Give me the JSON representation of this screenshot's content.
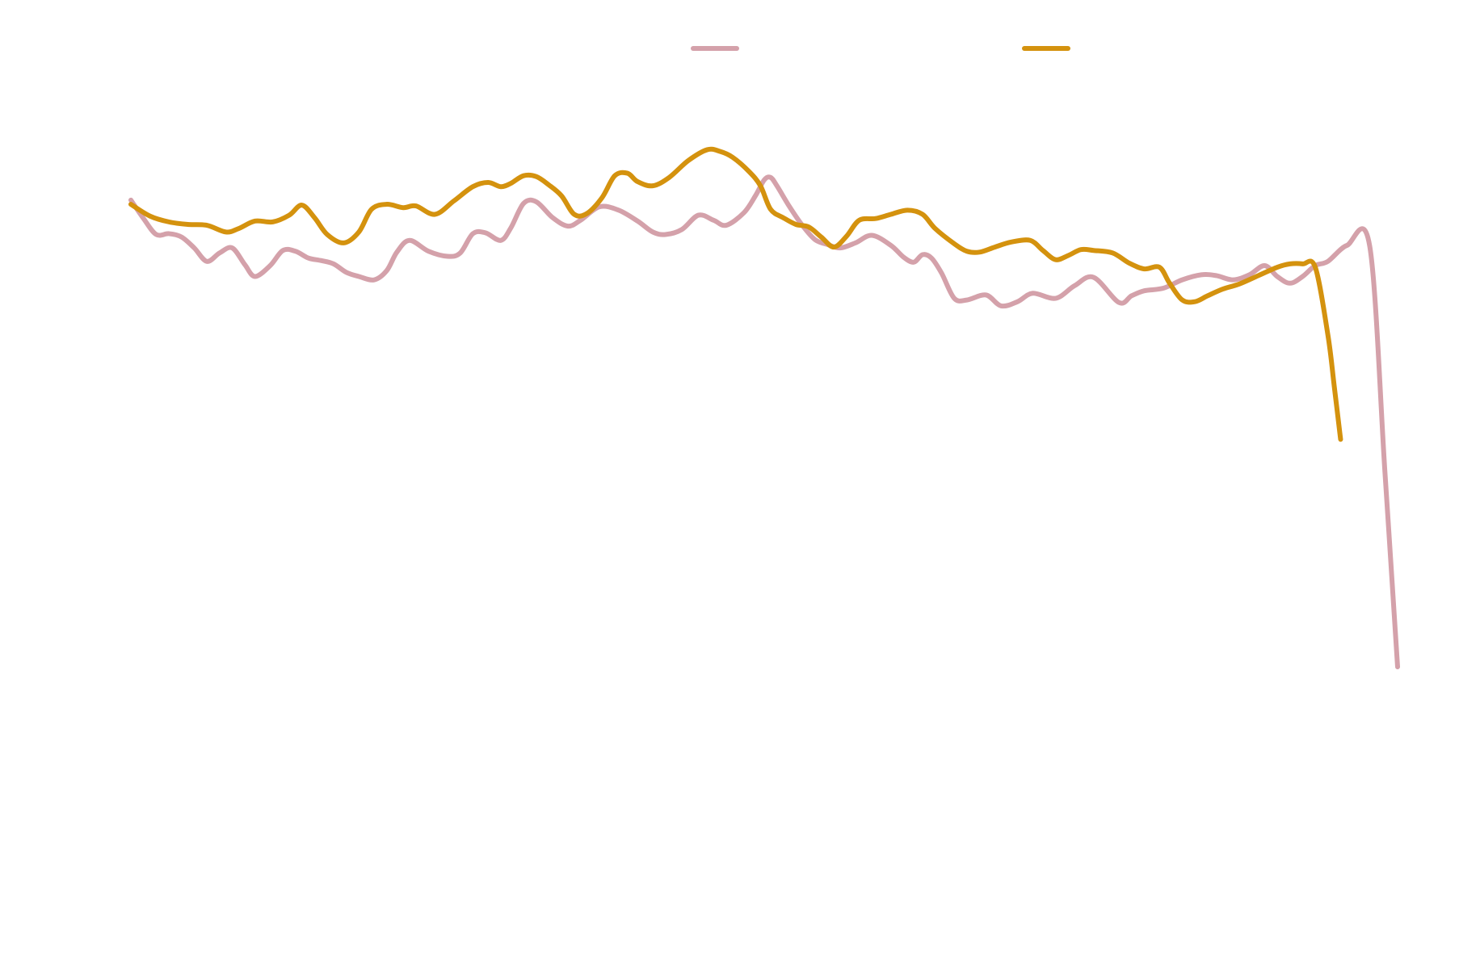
{
  "chart_data": {
    "type": "line",
    "title": "",
    "xlabel": "",
    "ylabel": "",
    "grid": false,
    "legend_position": "top",
    "xlim": [
      0,
      1
    ],
    "ylim": [
      0,
      1
    ],
    "series": [
      {
        "color": "#D4A1AA",
        "points": [
          [
            0.0,
            0.829
          ],
          [
            0.01,
            0.807
          ],
          [
            0.02,
            0.788
          ],
          [
            0.03,
            0.789
          ],
          [
            0.04,
            0.785
          ],
          [
            0.05,
            0.772
          ],
          [
            0.06,
            0.756
          ],
          [
            0.07,
            0.766
          ],
          [
            0.08,
            0.772
          ],
          [
            0.09,
            0.752
          ],
          [
            0.098,
            0.738
          ],
          [
            0.11,
            0.751
          ],
          [
            0.12,
            0.769
          ],
          [
            0.13,
            0.768
          ],
          [
            0.14,
            0.76
          ],
          [
            0.15,
            0.757
          ],
          [
            0.16,
            0.753
          ],
          [
            0.17,
            0.743
          ],
          [
            0.18,
            0.738
          ],
          [
            0.192,
            0.734
          ],
          [
            0.202,
            0.745
          ],
          [
            0.21,
            0.767
          ],
          [
            0.22,
            0.781
          ],
          [
            0.235,
            0.768
          ],
          [
            0.25,
            0.762
          ],
          [
            0.26,
            0.766
          ],
          [
            0.27,
            0.789
          ],
          [
            0.28,
            0.79
          ],
          [
            0.292,
            0.781
          ],
          [
            0.3,
            0.796
          ],
          [
            0.31,
            0.825
          ],
          [
            0.32,
            0.827
          ],
          [
            0.333,
            0.808
          ],
          [
            0.345,
            0.798
          ],
          [
            0.355,
            0.805
          ],
          [
            0.37,
            0.821
          ],
          [
            0.385,
            0.817
          ],
          [
            0.4,
            0.804
          ],
          [
            0.412,
            0.791
          ],
          [
            0.422,
            0.788
          ],
          [
            0.435,
            0.794
          ],
          [
            0.448,
            0.811
          ],
          [
            0.46,
            0.805
          ],
          [
            0.47,
            0.799
          ],
          [
            0.484,
            0.814
          ],
          [
            0.493,
            0.834
          ],
          [
            0.5,
            0.853
          ],
          [
            0.505,
            0.856
          ],
          [
            0.51,
            0.846
          ],
          [
            0.52,
            0.821
          ],
          [
            0.53,
            0.799
          ],
          [
            0.54,
            0.782
          ],
          [
            0.55,
            0.776
          ],
          [
            0.56,
            0.772
          ],
          [
            0.572,
            0.778
          ],
          [
            0.585,
            0.787
          ],
          [
            0.6,
            0.775
          ],
          [
            0.61,
            0.761
          ],
          [
            0.618,
            0.755
          ],
          [
            0.625,
            0.764
          ],
          [
            0.632,
            0.76
          ],
          [
            0.64,
            0.742
          ],
          [
            0.65,
            0.712
          ],
          [
            0.66,
            0.71
          ],
          [
            0.675,
            0.716
          ],
          [
            0.687,
            0.703
          ],
          [
            0.7,
            0.708
          ],
          [
            0.712,
            0.718
          ],
          [
            0.73,
            0.712
          ],
          [
            0.745,
            0.727
          ],
          [
            0.76,
            0.737
          ],
          [
            0.78,
            0.707
          ],
          [
            0.79,
            0.715
          ],
          [
            0.8,
            0.721
          ],
          [
            0.815,
            0.724
          ],
          [
            0.83,
            0.734
          ],
          [
            0.845,
            0.74
          ],
          [
            0.857,
            0.739
          ],
          [
            0.87,
            0.734
          ],
          [
            0.883,
            0.74
          ],
          [
            0.895,
            0.751
          ],
          [
            0.905,
            0.738
          ],
          [
            0.915,
            0.73
          ],
          [
            0.925,
            0.738
          ],
          [
            0.935,
            0.751
          ],
          [
            0.945,
            0.756
          ],
          [
            0.96,
            0.775
          ],
          [
            0.978,
            0.774
          ],
          [
            0.99,
            0.505
          ],
          [
            1.0,
            0.273
          ]
        ]
      },
      {
        "color": "#D4920E",
        "points": [
          [
            0.0,
            0.824
          ],
          [
            0.015,
            0.81
          ],
          [
            0.03,
            0.803
          ],
          [
            0.045,
            0.8
          ],
          [
            0.06,
            0.799
          ],
          [
            0.075,
            0.791
          ],
          [
            0.085,
            0.795
          ],
          [
            0.098,
            0.804
          ],
          [
            0.112,
            0.803
          ],
          [
            0.125,
            0.811
          ],
          [
            0.135,
            0.823
          ],
          [
            0.145,
            0.808
          ],
          [
            0.155,
            0.788
          ],
          [
            0.168,
            0.778
          ],
          [
            0.18,
            0.791
          ],
          [
            0.19,
            0.818
          ],
          [
            0.202,
            0.824
          ],
          [
            0.215,
            0.82
          ],
          [
            0.225,
            0.822
          ],
          [
            0.24,
            0.812
          ],
          [
            0.255,
            0.828
          ],
          [
            0.27,
            0.845
          ],
          [
            0.282,
            0.85
          ],
          [
            0.292,
            0.845
          ],
          [
            0.3,
            0.849
          ],
          [
            0.31,
            0.858
          ],
          [
            0.32,
            0.857
          ],
          [
            0.33,
            0.847
          ],
          [
            0.34,
            0.834
          ],
          [
            0.35,
            0.812
          ],
          [
            0.36,
            0.813
          ],
          [
            0.372,
            0.832
          ],
          [
            0.382,
            0.858
          ],
          [
            0.392,
            0.861
          ],
          [
            0.4,
            0.851
          ],
          [
            0.412,
            0.846
          ],
          [
            0.425,
            0.856
          ],
          [
            0.44,
            0.876
          ],
          [
            0.455,
            0.889
          ],
          [
            0.465,
            0.887
          ],
          [
            0.475,
            0.88
          ],
          [
            0.488,
            0.863
          ],
          [
            0.497,
            0.846
          ],
          [
            0.505,
            0.818
          ],
          [
            0.515,
            0.808
          ],
          [
            0.525,
            0.8
          ],
          [
            0.535,
            0.797
          ],
          [
            0.545,
            0.785
          ],
          [
            0.555,
            0.773
          ],
          [
            0.565,
            0.786
          ],
          [
            0.575,
            0.805
          ],
          [
            0.588,
            0.807
          ],
          [
            0.6,
            0.812
          ],
          [
            0.613,
            0.817
          ],
          [
            0.625,
            0.812
          ],
          [
            0.635,
            0.795
          ],
          [
            0.65,
            0.777
          ],
          [
            0.66,
            0.768
          ],
          [
            0.67,
            0.767
          ],
          [
            0.682,
            0.773
          ],
          [
            0.695,
            0.779
          ],
          [
            0.71,
            0.781
          ],
          [
            0.72,
            0.769
          ],
          [
            0.73,
            0.758
          ],
          [
            0.74,
            0.763
          ],
          [
            0.75,
            0.77
          ],
          [
            0.76,
            0.769
          ],
          [
            0.775,
            0.766
          ],
          [
            0.788,
            0.754
          ],
          [
            0.8,
            0.747
          ],
          [
            0.812,
            0.749
          ],
          [
            0.82,
            0.73
          ],
          [
            0.83,
            0.71
          ],
          [
            0.84,
            0.708
          ],
          [
            0.85,
            0.715
          ],
          [
            0.862,
            0.723
          ],
          [
            0.875,
            0.729
          ],
          [
            0.89,
            0.739
          ],
          [
            0.905,
            0.749
          ],
          [
            0.915,
            0.753
          ],
          [
            0.925,
            0.753
          ],
          [
            0.935,
            0.749
          ],
          [
            0.945,
            0.668
          ],
          [
            0.95,
            0.607
          ],
          [
            0.955,
            0.544
          ]
        ]
      }
    ]
  }
}
